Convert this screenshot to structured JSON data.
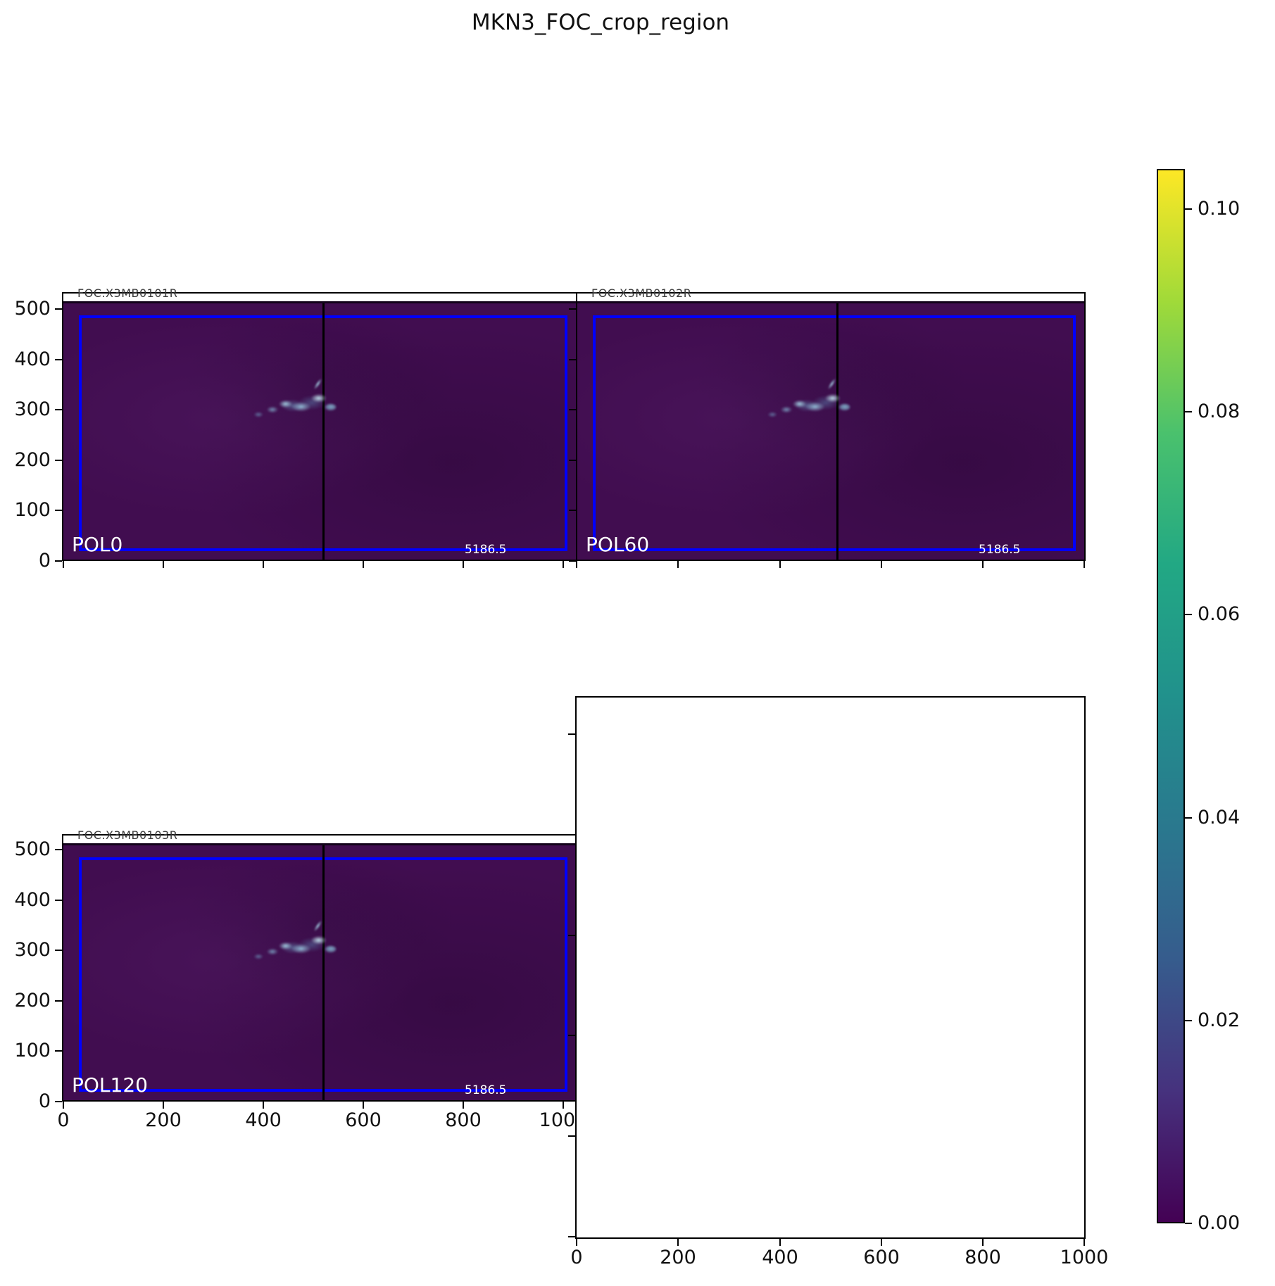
{
  "title": "MKN3_FOC_crop_region",
  "panels": [
    {
      "pol_label": "POL0",
      "obs_id": "FOC.X3MB0101R",
      "corner_value": "5186.5"
    },
    {
      "pol_label": "POL60",
      "obs_id": "FOC.X3MB0102R",
      "corner_value": "5186.5"
    },
    {
      "pol_label": "POL120",
      "obs_id": "FOC.X3MB0103R",
      "corner_value": "5186.5"
    }
  ],
  "axes": {
    "y_tick_labels": [
      "500",
      "400",
      "300",
      "200",
      "100",
      "0"
    ],
    "x_tick_labels": [
      "0",
      "200",
      "400",
      "600",
      "800",
      "1000"
    ]
  },
  "colorbar": {
    "tick_labels": [
      "0.10",
      "0.08",
      "0.06",
      "0.04",
      "0.02",
      "0.00"
    ],
    "colormap": "viridis",
    "vmin": "0.00",
    "vmax": "0.10"
  },
  "colors": {
    "image_background": "#410d50",
    "crop_rect": "#0000ff",
    "split_line": "#000000",
    "source_blob": "#a8d8ea",
    "viridis_top": "#fde725",
    "viridis_bottom": "#440154"
  },
  "chart_data": {
    "type": "heatmap",
    "title": "MKN3_FOC_crop_region",
    "subplots": [
      {
        "position": "top-left",
        "label": "POL0",
        "obs_id": "FOC.X3MB0101R",
        "annotation": "5186.5",
        "empty": false
      },
      {
        "position": "top-right",
        "label": "POL60",
        "obs_id": "FOC.X3MB0102R",
        "annotation": "5186.5",
        "empty": false
      },
      {
        "position": "bottom-left",
        "label": "POL120",
        "obs_id": "FOC.X3MB0103R",
        "annotation": "5186.5",
        "empty": false
      },
      {
        "position": "bottom-right",
        "label": "",
        "obs_id": "",
        "annotation": "",
        "empty": true
      }
    ],
    "x_ticks": [
      0,
      200,
      400,
      600,
      800,
      1000
    ],
    "y_ticks": [
      0,
      100,
      200,
      300,
      400,
      500
    ],
    "xlim": [
      0,
      1024
    ],
    "ylim": [
      0,
      540
    ],
    "colorbar": {
      "ticks": [
        0.0,
        0.02,
        0.04,
        0.06,
        0.08,
        0.1
      ],
      "vmin": 0.0,
      "vmax": 0.104,
      "colormap": "viridis",
      "position": "right"
    },
    "features": {
      "crop_region": "blue inset rectangle drawn on each polarization image",
      "split_line_data_x": 512,
      "bright_source_data_xy": [
        470,
        310
      ],
      "image_background_value": 0.005
    }
  }
}
